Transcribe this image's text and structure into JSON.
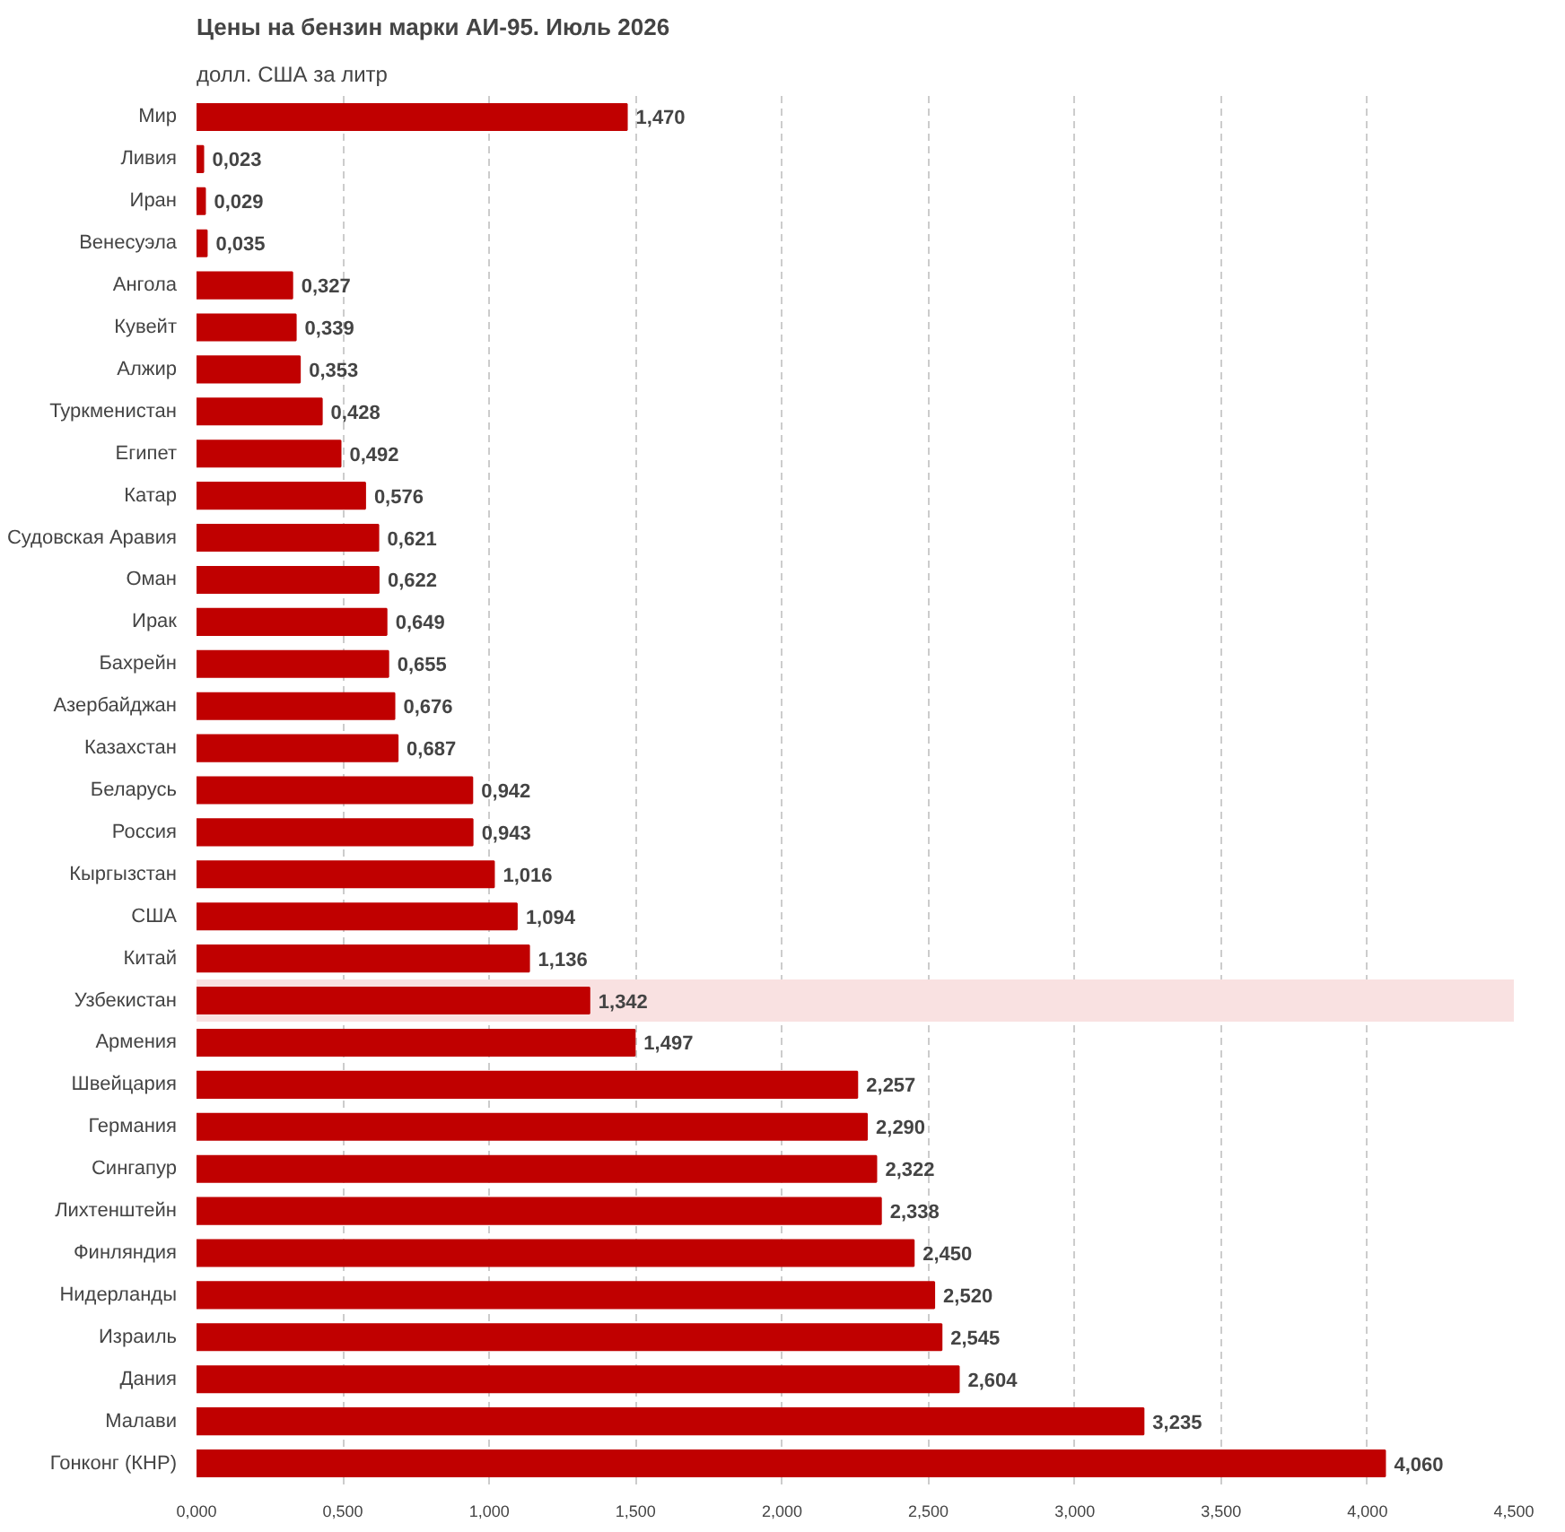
{
  "chart_data": {
    "type": "bar",
    "orientation": "horizontal",
    "title": "Цены на бензин марки АИ-95. Июль 2026",
    "subtitle": "долл. США за литр",
    "categories": [
      "Мир",
      "Ливия",
      "Иран",
      "Венесуэла",
      "Ангола",
      "Кувейт",
      "Алжир",
      "Туркменистан",
      "Египет",
      "Катар",
      "Судовская Аравия",
      "Оман",
      "Ирак",
      "Бахрейн",
      "Азербайджан",
      "Казахстан",
      "Беларусь",
      "Россия",
      "Кыргызстан",
      "США",
      "Китай",
      "Узбекистан",
      "Армения",
      "Швейцария",
      "Германия",
      "Сингапур",
      "Лихтенштейн",
      "Финляндия",
      "Нидерланды",
      "Израиль",
      "Дания",
      "Малави",
      "Гонконг (КНР)"
    ],
    "values": [
      1.47,
      0.023,
      0.029,
      0.035,
      0.327,
      0.339,
      0.353,
      0.428,
      0.492,
      0.576,
      0.621,
      0.622,
      0.649,
      0.655,
      0.676,
      0.687,
      0.942,
      0.943,
      1.016,
      1.094,
      1.136,
      1.342,
      1.497,
      2.257,
      2.29,
      2.322,
      2.338,
      2.45,
      2.52,
      2.545,
      2.604,
      3.235,
      4.06
    ],
    "value_labels": [
      "1,470",
      "0,023",
      "0,029",
      "0,035",
      "0,327",
      "0,339",
      "0,353",
      "0,428",
      "0,492",
      "0,576",
      "0,621",
      "0,622",
      "0,649",
      "0,655",
      "0,676",
      "0,687",
      "0,942",
      "0,943",
      "1,016",
      "1,094",
      "1,136",
      "1,342",
      "1,497",
      "2,257",
      "2,290",
      "2,322",
      "2,338",
      "2,450",
      "2,520",
      "2,545",
      "2,604",
      "3,235",
      "4,060"
    ],
    "color": "#c00000",
    "xlim": [
      0,
      4.5
    ],
    "xticks": [
      {
        "value": 0,
        "label": "0,000"
      },
      {
        "value": 0.5,
        "label": "0,500"
      },
      {
        "value": 1,
        "label": "1,000"
      },
      {
        "value": 1.5,
        "label": "1,500"
      },
      {
        "value": 2,
        "label": "2,000"
      },
      {
        "value": 2.5,
        "label": "2,500"
      },
      {
        "value": 3,
        "label": "3,000"
      },
      {
        "value": 3.5,
        "label": "3,500"
      },
      {
        "value": 4,
        "label": "4,000"
      },
      {
        "value": 4.5,
        "label": "4,500"
      }
    ],
    "bands": [
      {
        "axis": "y",
        "from": "Узбекистан",
        "to": "Узбекистан",
        "color": "#f9e1e1"
      }
    ],
    "grid": "x"
  }
}
